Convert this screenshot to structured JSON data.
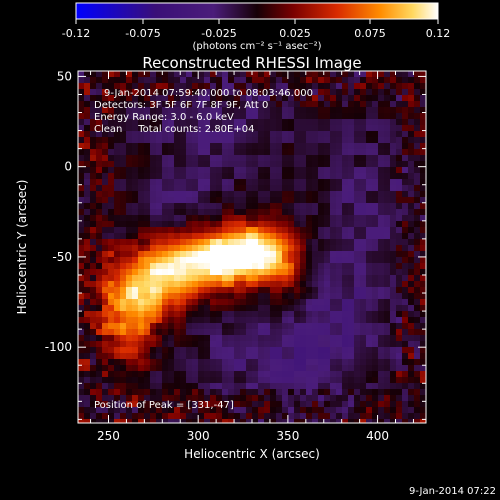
{
  "colorbar": {
    "tick_labels": [
      "-0.12",
      "-0.075",
      "-0.025",
      "0.025",
      "0.075",
      "0.12"
    ],
    "units_label": "(photons cm⁻² s⁻¹ asec⁻²)"
  },
  "title": "Reconstructed RHESSI Image",
  "info_lines": [
    "9-Jan-2014 07:59:40.000 to 08:03:46.000",
    "Detectors: 3F 5F 6F 7F 8F 9F, Att 0",
    "Energy Range: 3.0 - 6.0 keV",
    "Clean     Total counts: 2.80E+04"
  ],
  "peak_label": "Position of Peak = [331,-47]",
  "footer_timestamp": "9-Jan-2014 07:22",
  "colors": {
    "background": "#000000",
    "text": "#ffffff",
    "colormap": [
      "#0000ff",
      "#2a0a6e",
      "#4b1d7a",
      "#1a0008",
      "#8a0000",
      "#e23a00",
      "#ff9a00",
      "#ffe070",
      "#ffffff"
    ]
  },
  "chart_data": {
    "type": "heatmap",
    "title": "Reconstructed RHESSI Image",
    "xlabel": "Heliocentric X (arcsec)",
    "ylabel": "Heliocentric Y (arcsec)",
    "xlim": [
      233,
      427
    ],
    "ylim": [
      -142,
      53
    ],
    "x_ticks": [
      250,
      300,
      350,
      400
    ],
    "y_ticks": [
      50,
      0,
      -50,
      -100
    ],
    "colorbar_range": [
      -0.12,
      0.12
    ],
    "peak_position": [
      331,
      -47
    ],
    "sources": [
      {
        "x": 332,
        "y": -48,
        "rx": 14,
        "ry": 10,
        "amp": 0.12
      },
      {
        "x": 310,
        "y": -50,
        "rx": 16,
        "ry": 11,
        "amp": 0.08
      },
      {
        "x": 290,
        "y": -57,
        "rx": 16,
        "ry": 11,
        "amp": 0.068
      },
      {
        "x": 272,
        "y": -66,
        "rx": 14,
        "ry": 12,
        "amp": 0.062
      },
      {
        "x": 262,
        "y": -78,
        "rx": 11,
        "ry": 14,
        "amp": 0.05
      },
      {
        "x": 262,
        "y": -95,
        "rx": 9,
        "ry": 12,
        "amp": 0.032
      },
      {
        "x": 350,
        "y": -62,
        "rx": 9,
        "ry": 12,
        "amp": 0.03
      }
    ],
    "negative_regions": [
      {
        "x": 310,
        "y": 25,
        "rx": 30,
        "ry": 25,
        "amp": -0.025
      },
      {
        "x": 395,
        "y": -20,
        "rx": 22,
        "ry": 40,
        "amp": -0.02
      },
      {
        "x": 345,
        "y": -105,
        "rx": 40,
        "ry": 20,
        "amp": -0.028
      },
      {
        "x": 285,
        "y": -20,
        "rx": 20,
        "ry": 15,
        "amp": -0.015
      },
      {
        "x": 375,
        "y": -75,
        "rx": 20,
        "ry": 25,
        "amp": -0.02
      }
    ]
  }
}
